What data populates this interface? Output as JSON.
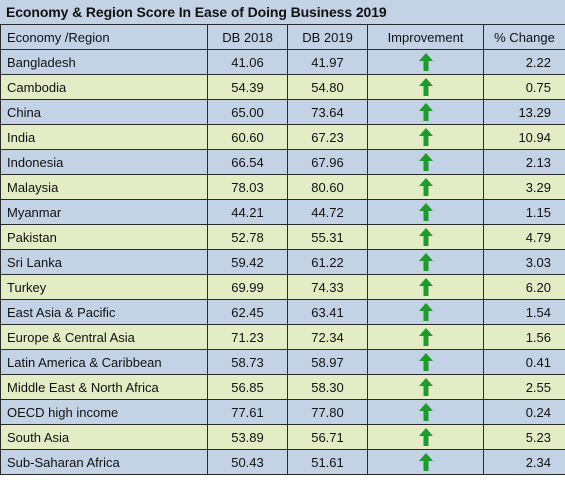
{
  "title": "Economy & Region Score In Ease of Doing Business 2019",
  "colors": {
    "header_bg": "#c3d2e4",
    "row_blue": "#c3d2e4",
    "row_green": "#e4ecc6",
    "arrow": "#1e9a2e"
  },
  "chart_data": {
    "type": "table",
    "title": "Economy & Region Score In Ease of Doing Business 2019",
    "columns": [
      "Economy /Region",
      "DB 2018",
      "DB 2019",
      "Improvement",
      "% Change"
    ],
    "rows": [
      {
        "name": "Bangladesh",
        "db2018": "41.06",
        "db2019": "41.97",
        "improvement": "up-arrow-icon",
        "change": "2.22"
      },
      {
        "name": "Cambodia",
        "db2018": "54.39",
        "db2019": "54.80",
        "improvement": "up-arrow-icon",
        "change": "0.75"
      },
      {
        "name": "China",
        "db2018": "65.00",
        "db2019": "73.64",
        "improvement": "up-arrow-icon",
        "change": "13.29"
      },
      {
        "name": "India",
        "db2018": "60.60",
        "db2019": "67.23",
        "improvement": "up-arrow-icon",
        "change": "10.94"
      },
      {
        "name": "Indonesia",
        "db2018": "66.54",
        "db2019": "67.96",
        "improvement": "up-arrow-icon",
        "change": "2.13"
      },
      {
        "name": "Malaysia",
        "db2018": "78.03",
        "db2019": "80.60",
        "improvement": "up-arrow-icon",
        "change": "3.29"
      },
      {
        "name": "Myanmar",
        "db2018": "44.21",
        "db2019": "44.72",
        "improvement": "up-arrow-icon",
        "change": "1.15"
      },
      {
        "name": "Pakistan",
        "db2018": "52.78",
        "db2019": "55.31",
        "improvement": "up-arrow-icon",
        "change": "4.79"
      },
      {
        "name": "Sri Lanka",
        "db2018": "59.42",
        "db2019": "61.22",
        "improvement": "up-arrow-icon",
        "change": "3.03"
      },
      {
        "name": "Turkey",
        "db2018": "69.99",
        "db2019": "74.33",
        "improvement": "up-arrow-icon",
        "change": "6.20"
      },
      {
        "name": "East Asia & Pacific",
        "db2018": "62.45",
        "db2019": "63.41",
        "improvement": "up-arrow-icon",
        "change": "1.54"
      },
      {
        "name": "Europe & Central Asia",
        "db2018": "71.23",
        "db2019": "72.34",
        "improvement": "up-arrow-icon",
        "change": "1.56"
      },
      {
        "name": "Latin America & Caribbean",
        "db2018": "58.73",
        "db2019": "58.97",
        "improvement": "up-arrow-icon",
        "change": "0.41"
      },
      {
        "name": "Middle East & North Africa",
        "db2018": "56.85",
        "db2019": "58.30",
        "improvement": "up-arrow-icon",
        "change": "2.55"
      },
      {
        "name": "OECD high income",
        "db2018": "77.61",
        "db2019": "77.80",
        "improvement": "up-arrow-icon",
        "change": "0.24"
      },
      {
        "name": "South Asia",
        "db2018": "53.89",
        "db2019": "56.71",
        "improvement": "up-arrow-icon",
        "change": "5.23"
      },
      {
        "name": "Sub-Saharan Africa",
        "db2018": "50.43",
        "db2019": "51.61",
        "improvement": "up-arrow-icon",
        "change": "2.34"
      }
    ]
  }
}
